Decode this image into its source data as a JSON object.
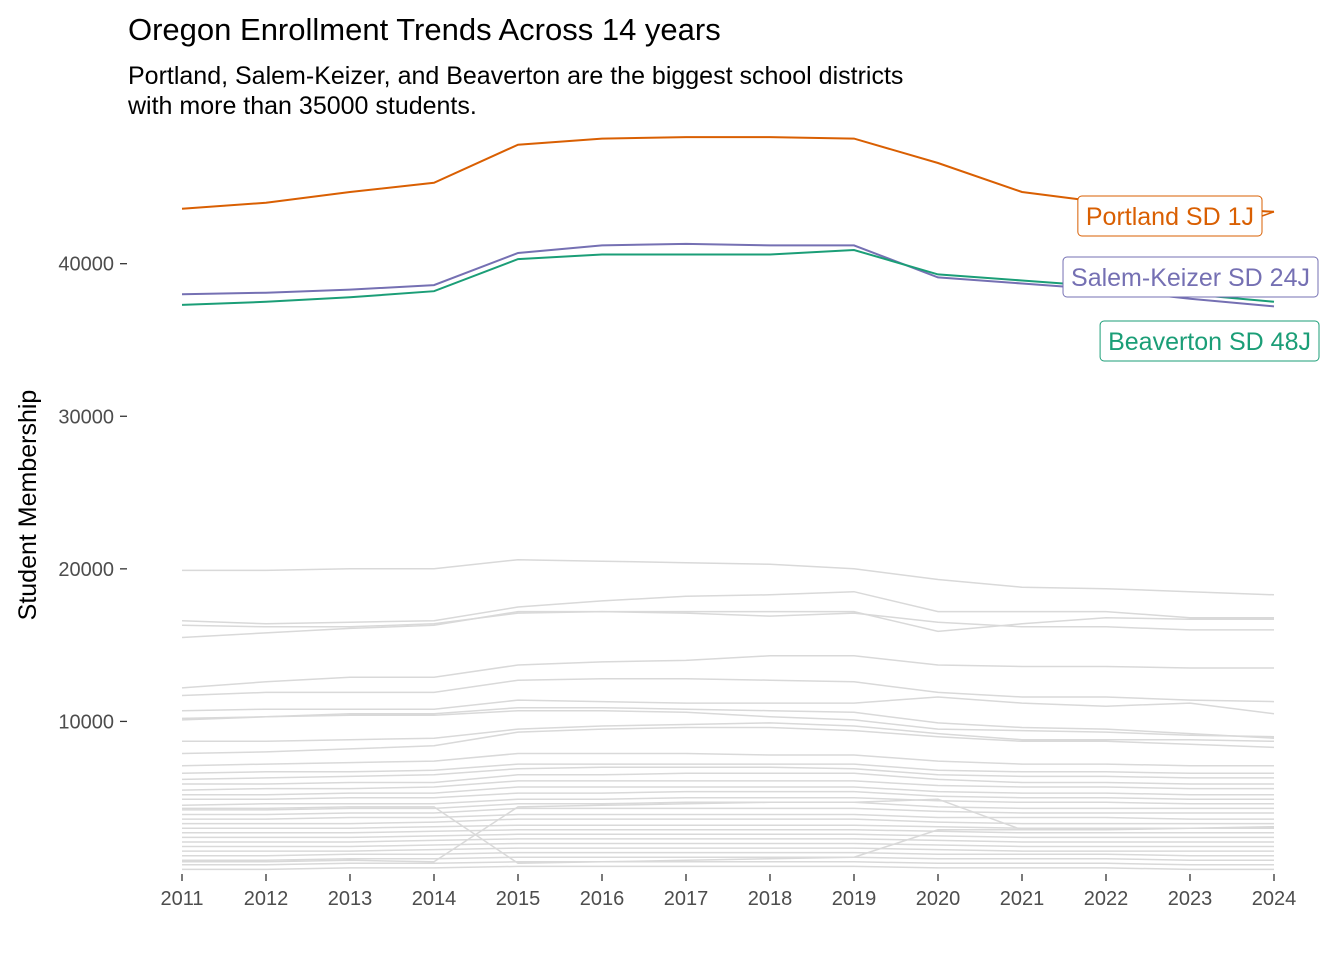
{
  "chart_data": {
    "type": "line",
    "title": "Oregon Enrollment Trends Across 14 years",
    "subtitle_lines": [
      "Portland, Salem-Keizer, and Beaverton are the biggest school districts",
      "with more than 35000 students."
    ],
    "xlabel": "",
    "ylabel": "Student Membership",
    "x": [
      2011,
      2012,
      2013,
      2014,
      2015,
      2016,
      2017,
      2018,
      2019,
      2020,
      2021,
      2022,
      2023,
      2024
    ],
    "xlim": [
      2011,
      2024
    ],
    "ylim": [
      0,
      48500
    ],
    "y_ticks": [
      10000,
      20000,
      30000,
      40000
    ],
    "grid": false,
    "highlight_series": [
      {
        "name": "Portland SD 1J",
        "color": "#d95f02",
        "values": [
          43600,
          44000,
          44700,
          45300,
          47800,
          48200,
          48300,
          48300,
          48200,
          46600,
          44700,
          44000,
          43700,
          43400
        ]
      },
      {
        "name": "Salem-Keizer SD 24J",
        "color": "#7570b3",
        "values": [
          38000,
          38100,
          38300,
          38600,
          40700,
          41200,
          41300,
          41200,
          41200,
          39100,
          38700,
          38300,
          37700,
          37200
        ]
      },
      {
        "name": "Beaverton SD 48J",
        "color": "#1b9e77",
        "values": [
          37300,
          37500,
          37800,
          38200,
          40300,
          40600,
          40600,
          40600,
          40900,
          39300,
          38900,
          38500,
          38000,
          37500
        ]
      }
    ],
    "background_series_color": "#d9d9d9",
    "background_series": [
      [
        19900,
        19900,
        20000,
        20000,
        20600,
        20500,
        20400,
        20300,
        20000,
        19300,
        18800,
        18700,
        18500,
        18300
      ],
      [
        16600,
        16400,
        16500,
        16600,
        17500,
        17900,
        18200,
        18300,
        18500,
        17200,
        17200,
        17200,
        16800,
        16800
      ],
      [
        15500,
        15800,
        16100,
        16300,
        17200,
        17200,
        17200,
        17200,
        17200,
        15900,
        16400,
        16800,
        16700,
        16700
      ],
      [
        16300,
        16200,
        16200,
        16400,
        17100,
        17200,
        17100,
        16900,
        17100,
        16500,
        16200,
        16200,
        16000,
        16000
      ],
      [
        12200,
        12600,
        12900,
        12900,
        13700,
        13900,
        14000,
        14300,
        14300,
        13700,
        13600,
        13600,
        13500,
        13500
      ],
      [
        11700,
        11900,
        11900,
        11900,
        12700,
        12800,
        12800,
        12700,
        12600,
        11900,
        11600,
        11600,
        11400,
        11300
      ],
      [
        10700,
        10800,
        10800,
        10800,
        11400,
        11300,
        11200,
        11200,
        11200,
        11600,
        11200,
        11000,
        11200,
        10500
      ],
      [
        10100,
        10300,
        10500,
        10500,
        10900,
        10900,
        10800,
        10700,
        10600,
        9900,
        9600,
        9500,
        9200,
        8900
      ],
      [
        10200,
        10300,
        10400,
        10400,
        10700,
        10700,
        10600,
        10300,
        10100,
        9500,
        9400,
        9300,
        9100,
        9000
      ],
      [
        8700,
        8700,
        8800,
        8900,
        9500,
        9700,
        9800,
        9900,
        9700,
        9200,
        8800,
        8800,
        8800,
        8700
      ],
      [
        7900,
        8000,
        8200,
        8400,
        9300,
        9500,
        9600,
        9600,
        9400,
        9000,
        8700,
        8700,
        8500,
        8300
      ],
      [
        7100,
        7200,
        7300,
        7400,
        7900,
        7900,
        7900,
        7800,
        7800,
        7400,
        7200,
        7200,
        7100,
        7100
      ],
      [
        6600,
        6700,
        6700,
        6800,
        7200,
        7200,
        7200,
        7200,
        7200,
        6800,
        6700,
        6700,
        6600,
        6600
      ],
      [
        6200,
        6300,
        6400,
        6500,
        6900,
        7000,
        7000,
        7000,
        6900,
        6500,
        6400,
        6400,
        6300,
        6300
      ],
      [
        5900,
        5900,
        6000,
        6000,
        6500,
        6500,
        6600,
        6600,
        6600,
        6200,
        6000,
        6000,
        5900,
        5900
      ],
      [
        5500,
        5600,
        5600,
        5700,
        6100,
        6100,
        6100,
        6100,
        6100,
        5800,
        5700,
        5700,
        5600,
        5600
      ],
      [
        5200,
        5200,
        5300,
        5300,
        5700,
        5700,
        5700,
        5700,
        5700,
        5400,
        5300,
        5300,
        5200,
        5200
      ],
      [
        4900,
        4900,
        5000,
        5000,
        5300,
        5300,
        5400,
        5400,
        5400,
        5100,
        5000,
        5000,
        4900,
        4900
      ],
      [
        4500,
        4600,
        4600,
        4600,
        4900,
        4900,
        5000,
        5000,
        5000,
        4800,
        4700,
        4700,
        4600,
        4600
      ],
      [
        4200,
        4200,
        4300,
        4300,
        4600,
        4600,
        4700,
        4700,
        4700,
        4400,
        4300,
        4300,
        4300,
        4300
      ],
      [
        3900,
        3900,
        4000,
        4000,
        4300,
        4300,
        4300,
        4300,
        4300,
        4100,
        4000,
        4000,
        4000,
        4000
      ],
      [
        3600,
        3600,
        3700,
        3700,
        3900,
        3900,
        3900,
        3900,
        3900,
        3700,
        3700,
        3700,
        3600,
        3600
      ],
      [
        3300,
        3300,
        3300,
        3400,
        3600,
        3600,
        3600,
        3600,
        3600,
        3400,
        3300,
        3300,
        3300,
        3300
      ],
      [
        3000,
        3000,
        3000,
        3100,
        3200,
        3200,
        3200,
        3200,
        3200,
        3100,
        3000,
        3000,
        3000,
        3000
      ],
      [
        2700,
        2700,
        2700,
        2800,
        2900,
        2900,
        2900,
        2900,
        2900,
        2800,
        2700,
        2700,
        2700,
        2700
      ],
      [
        2400,
        2400,
        2400,
        2500,
        2600,
        2600,
        2600,
        2600,
        2600,
        2500,
        2400,
        2400,
        2400,
        2400
      ],
      [
        2100,
        2100,
        2100,
        2200,
        2300,
        2300,
        2300,
        2300,
        2300,
        2200,
        2100,
        2100,
        2100,
        2100
      ],
      [
        1800,
        1800,
        1800,
        1900,
        2000,
        2000,
        2000,
        2000,
        2000,
        1900,
        1800,
        1800,
        1800,
        1800
      ],
      [
        1500,
        1500,
        1500,
        1600,
        1700,
        1700,
        1700,
        1700,
        1700,
        1600,
        1500,
        1500,
        1500,
        1500
      ],
      [
        1200,
        1200,
        1300,
        1300,
        1400,
        1400,
        1400,
        1400,
        1400,
        1300,
        1300,
        1300,
        1200,
        1200
      ],
      [
        900,
        900,
        1000,
        1000,
        1100,
        1100,
        1100,
        1100,
        1100,
        1000,
        1000,
        1000,
        900,
        900
      ],
      [
        600,
        600,
        700,
        700,
        800,
        800,
        800,
        800,
        800,
        700,
        700,
        700,
        600,
        600
      ],
      [
        300,
        300,
        400,
        400,
        500,
        500,
        500,
        500,
        500,
        400,
        400,
        400,
        300,
        300
      ],
      [
        4300,
        4300,
        4400,
        4400,
        700,
        800,
        900,
        1000,
        1100,
        2900,
        2900,
        3000,
        3000,
        3100
      ],
      [
        800,
        800,
        900,
        800,
        4400,
        4500,
        4600,
        4700,
        4700,
        4900,
        2900,
        2900,
        3000,
        3000
      ]
    ]
  }
}
